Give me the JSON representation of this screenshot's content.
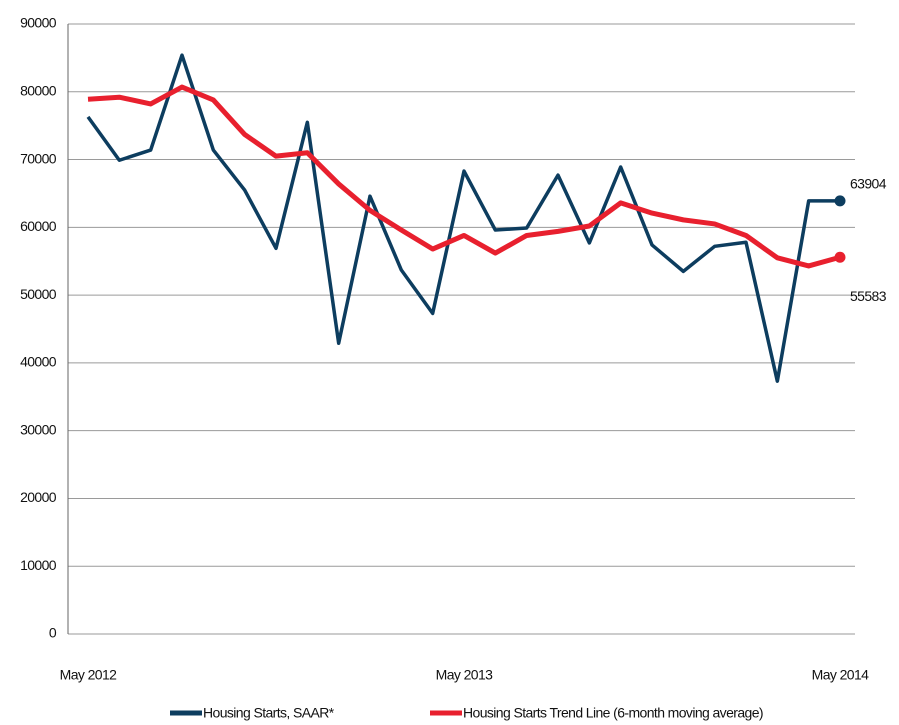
{
  "chart_data": {
    "type": "line",
    "categories": [
      "May 2012",
      null,
      null,
      null,
      null,
      null,
      null,
      null,
      null,
      null,
      null,
      null,
      "May 2013",
      null,
      null,
      null,
      null,
      null,
      null,
      null,
      null,
      null,
      null,
      null,
      "May 2014"
    ],
    "series": [
      {
        "name": "Housing Starts, SAAR*",
        "color": "#0d3d5f",
        "values": [
          76300,
          69900,
          71400,
          85400,
          71400,
          65500,
          56900,
          75500,
          42900,
          64600,
          53700,
          47300,
          68300,
          59600,
          59900,
          67700,
          57700,
          68900,
          57400,
          53500,
          57200,
          57800,
          37300,
          63900,
          63904
        ]
      },
      {
        "name": "Housing Starts Trend Line (6-month moving average)",
        "color": "#e8202e",
        "values": [
          78900,
          79200,
          78200,
          80700,
          78800,
          73700,
          70500,
          71000,
          66400,
          62500,
          59600,
          56800,
          58800,
          56200,
          58800,
          59400,
          60200,
          63600,
          62100,
          61100,
          60500,
          58800,
          55500,
          54300,
          55583
        ]
      }
    ],
    "ylim": [
      0,
      90000
    ],
    "yticks": [
      0,
      10000,
      20000,
      30000,
      40000,
      50000,
      60000,
      70000,
      80000,
      90000
    ],
    "grid": true,
    "legend": "bottom"
  }
}
